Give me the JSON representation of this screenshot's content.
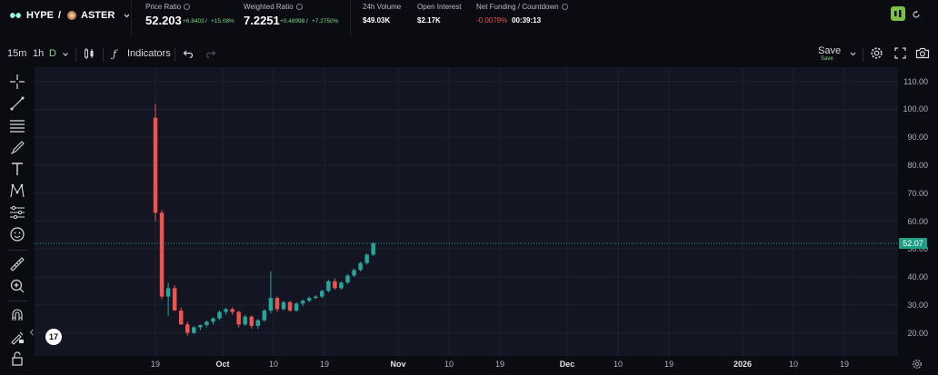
{
  "header": {
    "base": "HYPE",
    "slash": "/",
    "quote": "ASTER",
    "price_ratio": {
      "label": "Price Ratio",
      "value": "52.203",
      "change_abs": "+6.8403",
      "sep": "/",
      "change_pct": "+15.08%"
    },
    "weighted_ratio": {
      "label": "Weighted Ratio",
      "value": "7.2251",
      "change_abs": "+0.48998",
      "sep": "/",
      "change_pct": "+7.2750%"
    },
    "volume": {
      "label": "24h Volume",
      "value": "$49.03K"
    },
    "open_interest": {
      "label": "Open Interest",
      "value": "$2.17K"
    },
    "funding": {
      "label": "Net Funding / Countdown",
      "rate": "-0.0079%",
      "countdown": "00:39:13"
    }
  },
  "toolbar": {
    "intervals": [
      "15m",
      "1h",
      "D"
    ],
    "indicators_label": "Indicators",
    "save_label": "Save",
    "save_sub": "Save"
  },
  "icons": {
    "left_tools": [
      "crosshair-icon",
      "trend-line-icon",
      "fib-lines-icon",
      "brush-icon",
      "text-icon",
      "pattern-icon",
      "forecast-icon",
      "emoji-icon",
      "ruler-icon",
      "zoom-in-icon",
      "magnet-icon",
      "lock-draw-icon",
      "unlock-icon"
    ]
  },
  "colors": {
    "up": "#26a69a",
    "down": "#ef5350",
    "accent_green": "#7cc04a",
    "last_price": "#1f9e86"
  },
  "last_price_label": "52.07",
  "logo_text": "17",
  "chart_data": {
    "type": "candlestick",
    "y_axis_ticks": [
      "110.00",
      "100.00",
      "90.00",
      "80.00",
      "70.00",
      "60.00",
      "50.00",
      "40.00",
      "30.00",
      "20.00"
    ],
    "x_axis_ticks": [
      "19",
      "Oct",
      "10",
      "19",
      "Nov",
      "10",
      "19",
      "Dec",
      "10",
      "19",
      "2026",
      "10",
      "19"
    ],
    "bold_x_ticks": [
      "Oct",
      "Nov",
      "Dec",
      "2026"
    ],
    "ylim": [
      15,
      112.5
    ],
    "last_price": 52.07,
    "grid": true,
    "candles": [
      {
        "o": 97,
        "h": 102,
        "l": 60,
        "c": 63
      },
      {
        "o": 63,
        "h": 64,
        "l": 32,
        "c": 33
      },
      {
        "o": 33,
        "h": 38,
        "l": 26,
        "c": 36
      },
      {
        "o": 36,
        "h": 37,
        "l": 28,
        "c": 28
      },
      {
        "o": 28,
        "h": 29,
        "l": 23,
        "c": 23
      },
      {
        "o": 23,
        "h": 24,
        "l": 19,
        "c": 20
      },
      {
        "o": 20,
        "h": 22.5,
        "l": 19.5,
        "c": 22
      },
      {
        "o": 22,
        "h": 23,
        "l": 21,
        "c": 22.8
      },
      {
        "o": 22.8,
        "h": 24.5,
        "l": 22,
        "c": 24
      },
      {
        "o": 24,
        "h": 25.5,
        "l": 23,
        "c": 25.2
      },
      {
        "o": 25.2,
        "h": 28,
        "l": 24.5,
        "c": 27.5
      },
      {
        "o": 27.5,
        "h": 29,
        "l": 26.5,
        "c": 28.5
      },
      {
        "o": 28.5,
        "h": 29.2,
        "l": 26.5,
        "c": 27.5
      },
      {
        "o": 27.5,
        "h": 28,
        "l": 22,
        "c": 23
      },
      {
        "o": 23,
        "h": 26.5,
        "l": 22.5,
        "c": 25.8
      },
      {
        "o": 25.8,
        "h": 26.2,
        "l": 21.5,
        "c": 22.5
      },
      {
        "o": 22.5,
        "h": 25,
        "l": 21.5,
        "c": 24.5
      },
      {
        "o": 24.5,
        "h": 28.5,
        "l": 24,
        "c": 28
      },
      {
        "o": 28,
        "h": 42,
        "l": 27,
        "c": 32.5
      },
      {
        "o": 32.5,
        "h": 33,
        "l": 27.5,
        "c": 28.5
      },
      {
        "o": 28.5,
        "h": 31.5,
        "l": 28,
        "c": 31
      },
      {
        "o": 31,
        "h": 31.5,
        "l": 27.5,
        "c": 28
      },
      {
        "o": 28,
        "h": 31,
        "l": 27.5,
        "c": 30.5
      },
      {
        "o": 30.5,
        "h": 32,
        "l": 29.5,
        "c": 31.5
      },
      {
        "o": 31.5,
        "h": 33,
        "l": 31,
        "c": 32.5
      },
      {
        "o": 32.5,
        "h": 33.5,
        "l": 32,
        "c": 33
      },
      {
        "o": 33,
        "h": 35.5,
        "l": 32.5,
        "c": 35
      },
      {
        "o": 35,
        "h": 39,
        "l": 34.5,
        "c": 38.5
      },
      {
        "o": 38.5,
        "h": 39.5,
        "l": 35.5,
        "c": 36
      },
      {
        "o": 36,
        "h": 38.5,
        "l": 35.5,
        "c": 38
      },
      {
        "o": 38,
        "h": 41,
        "l": 37.5,
        "c": 40.5
      },
      {
        "o": 40.5,
        "h": 43,
        "l": 40,
        "c": 42.5
      },
      {
        "o": 42.5,
        "h": 45.5,
        "l": 42,
        "c": 45
      },
      {
        "o": 45,
        "h": 48.5,
        "l": 44.5,
        "c": 48
      },
      {
        "o": 48,
        "h": 52.5,
        "l": 47.5,
        "c": 52.07
      }
    ]
  }
}
